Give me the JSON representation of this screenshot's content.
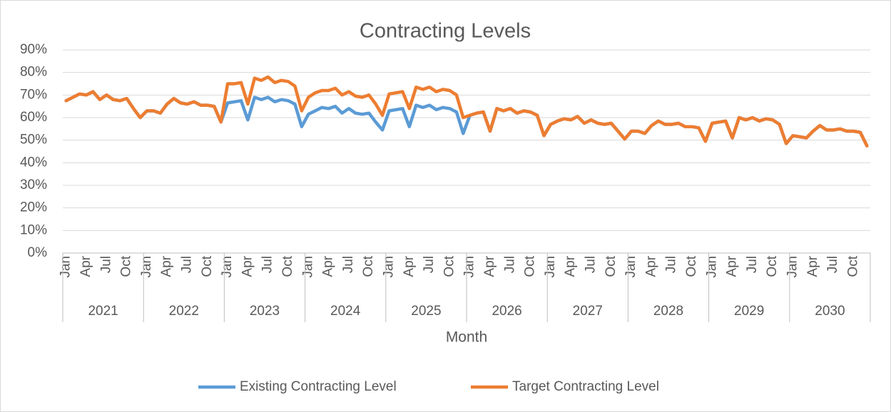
{
  "chart_data": {
    "type": "line",
    "title": "Contracting Levels",
    "x_label": "Month",
    "categories": [
      "Jan",
      null,
      null,
      "Apr",
      null,
      null,
      "Jul",
      null,
      null,
      "Oct",
      null,
      null,
      "Jan",
      null,
      null,
      "Apr",
      null,
      null,
      "Jul",
      null,
      null,
      "Oct",
      null,
      null,
      "Jan",
      null,
      null,
      "Apr",
      null,
      null,
      "Jul",
      null,
      null,
      "Oct",
      null,
      null,
      "Jan",
      null,
      null,
      "Apr",
      null,
      null,
      "Jul",
      null,
      null,
      "Oct",
      null,
      null,
      "Jan",
      null,
      null,
      "Apr",
      null,
      null,
      "Jul",
      null,
      null,
      "Oct",
      null,
      null,
      "Jan",
      null,
      null,
      "Apr",
      null,
      null,
      "Jul",
      null,
      null,
      "Oct",
      null,
      null,
      "Jan",
      null,
      null,
      "Apr",
      null,
      null,
      "Jul",
      null,
      null,
      "Oct",
      null,
      null,
      "Jan",
      null,
      null,
      "Apr",
      null,
      null,
      "Jul",
      null,
      null,
      "Oct",
      null,
      null,
      "Jan",
      null,
      null,
      "Apr",
      null,
      null,
      "Jul",
      null,
      null,
      "Oct",
      null,
      null,
      "Jan",
      null,
      null,
      "Apr",
      null,
      null,
      "Jul",
      null,
      null,
      "Oct",
      null,
      null
    ],
    "year_groups": [
      "2021",
      "2022",
      "2023",
      "2024",
      "2025",
      "2026",
      "2027",
      "2028",
      "2029",
      "2030"
    ],
    "series": [
      {
        "name": "Existing Contracting Level",
        "color": "#5b9bd5",
        "values": [
          67.5,
          69,
          70.5,
          70,
          71.5,
          68,
          70,
          68,
          67.5,
          68.5,
          64,
          60,
          63,
          63,
          62,
          66,
          68.5,
          66.5,
          66,
          67,
          65.5,
          65.5,
          65,
          58,
          66.5,
          67,
          67.5,
          59,
          69,
          68,
          69,
          67,
          68,
          67.5,
          66,
          56,
          61.5,
          63,
          64.5,
          64,
          65,
          62,
          64,
          62,
          61.5,
          62,
          58,
          54.5,
          63,
          63.5,
          64,
          56,
          65.5,
          64.5,
          65.5,
          63.5,
          64.5,
          64,
          62.5,
          53,
          61,
          62,
          62.5,
          54,
          64,
          63,
          64,
          62,
          63,
          62.5,
          61,
          52,
          57,
          58.5,
          59.5,
          59,
          60.5,
          57.5,
          59,
          57.5,
          57,
          57.5,
          54,
          50.5,
          54,
          54,
          53,
          56.5,
          58.5,
          57,
          57,
          57.5,
          56,
          56,
          55.5,
          49.5,
          57.5,
          58,
          58.5,
          51,
          60,
          59,
          60,
          58.5,
          59.5,
          59,
          57,
          48.5,
          52,
          51.5,
          51,
          54,
          56.5,
          54.5,
          54.5,
          55,
          54,
          54,
          53.5,
          47.5
        ]
      },
      {
        "name": "Target Contracting Level",
        "color": "#ed7d31",
        "values": [
          67.5,
          69,
          70.5,
          70,
          71.5,
          68,
          70,
          68,
          67.5,
          68.5,
          64,
          60,
          63,
          63,
          62,
          66,
          68.5,
          66.5,
          66,
          67,
          65.5,
          65.5,
          65,
          58,
          75,
          75,
          75.5,
          66,
          77.5,
          76.5,
          78,
          75.5,
          76.5,
          76,
          74,
          63,
          69,
          71,
          72,
          72,
          73,
          70,
          71.5,
          69.5,
          69,
          70,
          66,
          61,
          70.5,
          71,
          71.5,
          64,
          73.5,
          72.5,
          73.5,
          71.5,
          72.5,
          72,
          70,
          60,
          61,
          62,
          62.5,
          54,
          64,
          63,
          64,
          62,
          63,
          62.5,
          61,
          52,
          57,
          58.5,
          59.5,
          59,
          60.5,
          57.5,
          59,
          57.5,
          57,
          57.5,
          54,
          50.5,
          54,
          54,
          53,
          56.5,
          58.5,
          57,
          57,
          57.5,
          56,
          56,
          55.5,
          49.5,
          57.5,
          58,
          58.5,
          51,
          60,
          59,
          60,
          58.5,
          59.5,
          59,
          57,
          48.5,
          52,
          51.5,
          51,
          54,
          56.5,
          54.5,
          54.5,
          55,
          54,
          54,
          53.5,
          47.5
        ]
      }
    ],
    "ylim": [
      0,
      90
    ],
    "yticks": [
      {
        "value": 0,
        "label": "0%"
      },
      {
        "value": 10,
        "label": "10%"
      },
      {
        "value": 20,
        "label": "20%"
      },
      {
        "value": 30,
        "label": "30%"
      },
      {
        "value": 40,
        "label": "40%"
      },
      {
        "value": 50,
        "label": "50%"
      },
      {
        "value": 60,
        "label": "60%"
      },
      {
        "value": 70,
        "label": "70%"
      },
      {
        "value": 80,
        "label": "80%"
      },
      {
        "value": 90,
        "label": "90%"
      }
    ],
    "grid": true,
    "legend": "bottom"
  }
}
